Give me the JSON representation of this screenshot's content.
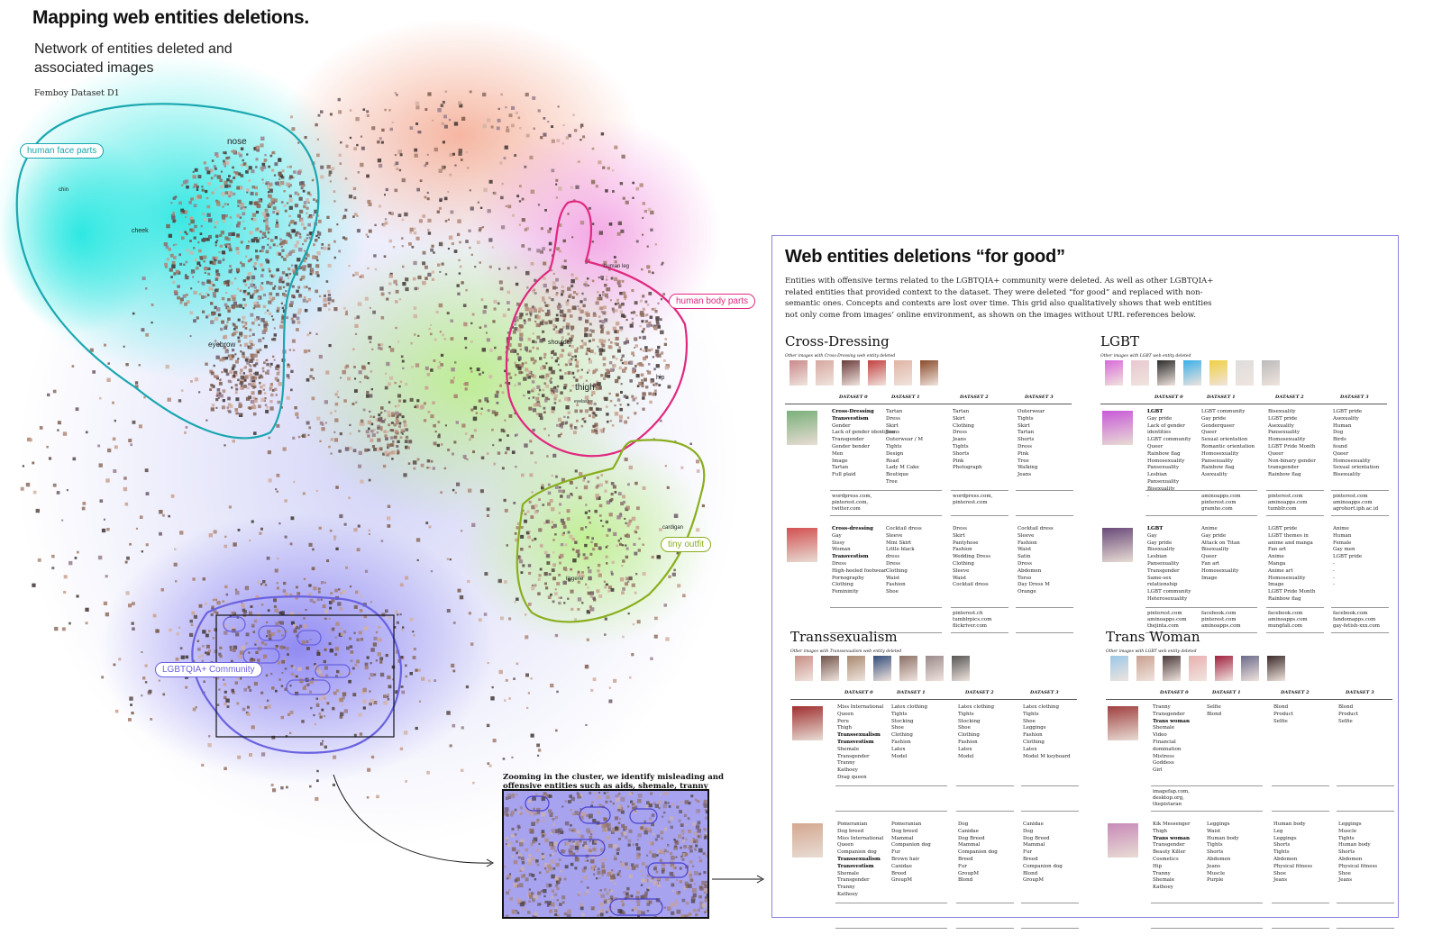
{
  "header": {
    "title": "Mapping web entities deletions.",
    "subtitle": "Network of entities deleted and associated images",
    "dataset": "Femboy Dataset D1"
  },
  "network": {
    "clusters": [
      {
        "label": "human face parts",
        "color": "#1aa7b0"
      },
      {
        "label": "human body parts",
        "color": "#e0287f"
      },
      {
        "label": "tiny outfit",
        "color": "#8aae1e"
      },
      {
        "label": "LGBTQIA+ Community",
        "color": "#6a62e0"
      }
    ],
    "node_labels": [
      "nose",
      "chin",
      "cheek",
      "eyebrow",
      "human leg",
      "shoulder",
      "thigh",
      "hip",
      "cardigan",
      "eyelash",
      "lingerie"
    ],
    "zoom_caption": "Zooming in the cluster, we identify misleading and offensive entities such as aids, shemale, tranny among others."
  },
  "panel": {
    "title": "Web entities deletions “for good”",
    "description": "Entities with offensive terms related to the LGBTQIA+ community were deleted. As well as other LGBTQIA+ related entities that provided context to the dataset. They were deleted “for good” and replaced with non-semantic ones. Concepts and contexts are lost over time. This grid also qualitatively shows that web entities not only come from images’ online environment, as shown on the images without URL references below.",
    "dataset_headers": [
      "DATASET 0",
      "DATASET 1",
      "DATASET 2",
      "DATASET 3"
    ],
    "sections": [
      {
        "title": "Cross-Dressing",
        "subtitle": "Other images with Cross-Dressing web entity deleted",
        "rows": [
          {
            "cols": [
              [
                "Cross-Dressing",
                "Transvestism",
                "Gender",
                "Lack of gender identities",
                "Transgender",
                "Gender bender",
                "Men",
                "Image",
                "Tartan",
                "Full plaid"
              ],
              [
                "Tartan",
                "Dress",
                "Skirt",
                "Jeans",
                "Outerwear / M",
                "Tights",
                "Design",
                "Road",
                "Lady M Cake",
                "Boutique",
                "Tree"
              ],
              [
                "Tartan",
                "Skirt",
                "Clothing",
                "Dress",
                "Jeans",
                "Tights",
                "Shorts",
                "Pink",
                "Photograph"
              ],
              [
                "Outerwear",
                "Tights",
                "Skirt",
                "Tartan",
                "Shorts",
                "Dress",
                "Pink",
                "Tree",
                "Walking",
                "Jeans"
              ]
            ],
            "urls": [
              [
                "wordpress.com,",
                "pinterest.com,",
                "twitter.com"
              ],
              [],
              [
                "wordpress.com,",
                "pinterest.com"
              ],
              []
            ]
          },
          {
            "cols": [
              [
                "Cross-dressing",
                "Gay",
                "Sissy",
                "Woman",
                "Transvestism",
                "Dress",
                "High-heeled footwear",
                "Pornography",
                "Clothing",
                "Femininity"
              ],
              [
                "Cocktail dress",
                "Sleeve",
                "Mini Skirt",
                "Little black",
                "dress",
                "Dress",
                "Clothing",
                "Waist",
                "Fashion",
                "Shoe"
              ],
              [
                "Dress",
                "Skirt",
                "Pantyhose",
                "Fashion",
                "Wedding Dress",
                "Clothing",
                "Sleeve",
                "Waist",
                "Cocktail dress"
              ],
              [
                "Cocktail dress",
                "Sleeve",
                "Fashion",
                "Waist",
                "Satin",
                "Dress",
                "Abdomen",
                "Torso",
                "Day Dress M",
                "Orange"
              ]
            ],
            "urls": [
              [],
              [],
              [
                "pinterest.ch",
                "tumblrpics.com",
                "flickriver.com"
              ],
              []
            ]
          }
        ]
      },
      {
        "title": "LGBT",
        "subtitle": "Other images with LGBT web entity deleted",
        "rows": [
          {
            "cols": [
              [
                "LGBT",
                "Gay pride",
                "Lack of gender",
                "identities",
                "LGBT community",
                "Queer",
                "Rainbow flag",
                "Homosexuality",
                "Pansexuality",
                "Lesbian",
                "Pansexuality",
                "Bisexuality"
              ],
              [
                "LGBT community",
                "Gay pride",
                "Genderqueer",
                "Queer",
                "Sexual orientation",
                "Romantic orientation",
                "Homosexuality",
                "Pansexuality",
                "Rainbow flag",
                "Asexuality"
              ],
              [
                "Bisexuality",
                "LGBT pride",
                "Asexuality",
                "Pansexuality",
                "Homosexuality",
                "LGBT Pride Month",
                "Queer",
                "Non-binary gender",
                "transgender",
                "Rainbow flag"
              ],
              [
                "LGBT pride",
                "Asexuality",
                "Human",
                "Dog",
                "Birds",
                "found",
                "Queer",
                "Homosexuality",
                "Sexual orientation",
                "Bisexuality"
              ]
            ],
            "urls": [
              [
                "-"
              ],
              [
                "aminoapps.com",
                "pinterest.com",
                "gramho.com"
              ],
              [
                "pinterest.com",
                "aminoapps.com",
                "tumblr.com"
              ],
              [
                "pinterest.com",
                "aminoapps.com",
                "agrohort.ipb.ac.id"
              ]
            ]
          },
          {
            "cols": [
              [
                "LGBT",
                "Gay",
                "Gay pride",
                "Bisexuality",
                "Lesbian",
                "Pansexuality",
                "Transgender",
                "Same-sex",
                "relationship",
                "LGBT community",
                "Heterosexuality"
              ],
              [
                "Anime",
                "Gay pride",
                "Attack on Titan",
                "Bisexuality",
                "Queer",
                "Fan art",
                "Homosexuality",
                "Image"
              ],
              [
                "LGBT pride",
                "LGBT themes in",
                "anime and manga",
                "Fan art",
                "Anime",
                "Manga",
                "Anime art",
                "Homosexuality",
                "Image",
                "LGBT Pride Month",
                "Rainbow flag"
              ],
              [
                "Anime",
                "Human",
                "Female",
                "Gay men",
                "LGBT pride",
                "-",
                "-",
                "-",
                "-"
              ]
            ],
            "urls": [
              [
                "pinterest.com",
                "aminoapps.com",
                "thejinta.com"
              ],
              [
                "facebook.com",
                "pinterest.com",
                "aminoapps.com"
              ],
              [
                "facebook.com",
                "aminoapps.com",
                "mungfali.com"
              ],
              [
                "facebook.com",
                "fandomapps.com",
                "gay-fetish-xxx.com"
              ]
            ]
          }
        ]
      },
      {
        "title": "Transsexualism",
        "subtitle": "Other images with Transsexualism web entity deleted",
        "rows": [
          {
            "cols": [
              [
                "Miss International",
                "Queen",
                "Peru",
                "Thigh",
                "Transsexualism",
                "Transvestism",
                "Shemale",
                "Transgender",
                "Tranny",
                "Kathoey",
                "Drag queen"
              ],
              [
                "Latex clothing",
                "Tights",
                "Stocking",
                "Shoe",
                "Clothing",
                "Fashion",
                "Latex",
                "Model"
              ],
              [
                "Latex clothing",
                "Tights",
                "Stocking",
                "Shoe",
                "Clothing",
                "Fashion",
                "Latex",
                "Model"
              ],
              [
                "Latex clothing",
                "Tights",
                "Shoe",
                "Leggings",
                "Fashion",
                "Clothing",
                "Latex",
                "Model M keyboard"
              ]
            ],
            "urls": [
              [],
              [],
              [],
              []
            ]
          },
          {
            "cols": [
              [
                "Pomeranian",
                "Dog breed",
                "Miss International",
                "Queen",
                "Companion dog",
                "Transsexualism",
                "Transvestism",
                "Shemale",
                "Transgender",
                "Tranny",
                "Kathoey"
              ],
              [
                "Pomeranian",
                "Dog breed",
                "Mammal",
                "Companion dog",
                "Fur",
                "Brown hair",
                "Canidae",
                "Breed",
                "GroupM"
              ],
              [
                "Dog",
                "Canidae",
                "Dog Breed",
                "Mammal",
                "Companion dog",
                "Breed",
                "Fur",
                "GroupM",
                "Blond"
              ],
              [
                "Canidae",
                "Dog",
                "Dog Breed",
                "Mammal",
                "Fur",
                "Breed",
                "Companion dog",
                "Blond",
                "GroupM"
              ]
            ],
            "urls": [
              [],
              [],
              [],
              []
            ]
          }
        ]
      },
      {
        "title": "Trans Woman",
        "subtitle": "Other images with LGBT web entity deleted",
        "rows": [
          {
            "cols": [
              [
                "Tranny",
                "Transgender",
                "Trans woman",
                "Shemale",
                "Video",
                "Financial",
                "domination",
                "Mistress",
                "Goddess",
                "Girl"
              ],
              [
                "Selfie",
                "Blond"
              ],
              [
                "Blond",
                "Product",
                "Selfie"
              ],
              [
                "Blond",
                "Product",
                "Selfie"
              ]
            ],
            "urls": [
              [
                "imagefap.com,",
                "desktop.org,",
                "thepistaran"
              ],
              [],
              [],
              []
            ]
          },
          {
            "cols": [
              [
                "Kik Messenger",
                "Thigh",
                "Trans woman",
                "Transgender",
                "Beauty Killer",
                "Cosmetics",
                "Hip",
                "Tranny",
                "Shemale",
                "Kathoey"
              ],
              [
                "Leggings",
                "Waist",
                "Human body",
                "Tights",
                "Shorts",
                "Abdomen",
                "Jeans",
                "Muscle",
                "Purple"
              ],
              [
                "Human body",
                "Leg",
                "Leggings",
                "Shorts",
                "Tights",
                "Abdomen",
                "Physical fitness",
                "Shoe",
                "Jeans"
              ],
              [
                "Leggings",
                "Muscle",
                "Tights",
                "Human body",
                "Shorts",
                "Abdomen",
                "Physical fitness",
                "Shoe",
                "Jeans"
              ]
            ],
            "urls": [
              [],
              [],
              [],
              []
            ]
          }
        ]
      }
    ]
  }
}
